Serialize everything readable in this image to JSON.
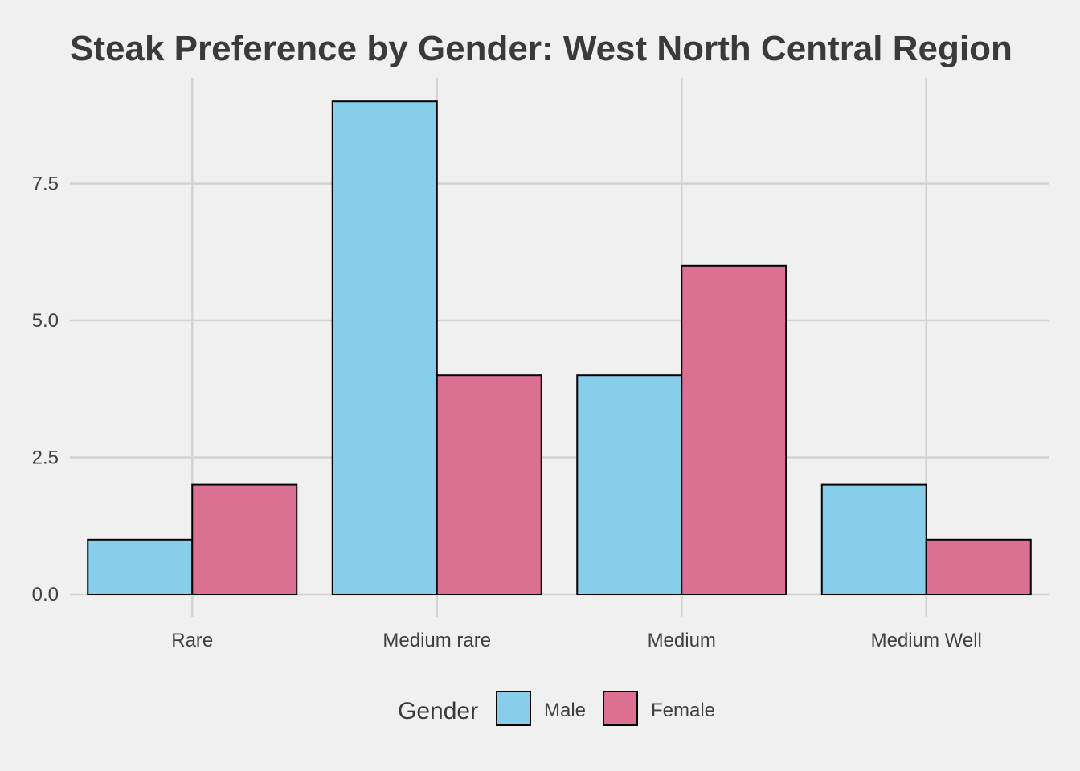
{
  "chart_data": {
    "type": "bar",
    "title": "Steak Preference by Gender: West North Central Region",
    "xlabel": "",
    "ylabel": "",
    "categories": [
      "Rare",
      "Medium rare",
      "Medium",
      "Medium Well"
    ],
    "series": [
      {
        "name": "Male",
        "values": [
          1,
          9,
          4,
          2
        ],
        "color": "#87CEEB"
      },
      {
        "name": "Female",
        "values": [
          2,
          4,
          6,
          1
        ],
        "color": "#DB7093"
      }
    ],
    "ylim": [
      0,
      9.5
    ],
    "yticks": [
      0,
      2.5,
      5,
      7.5
    ],
    "ytick_labels": [
      "0.0",
      "2.5",
      "5.0",
      "7.5"
    ],
    "grid": true,
    "legend": {
      "title": "Gender",
      "position": "bottom"
    }
  }
}
